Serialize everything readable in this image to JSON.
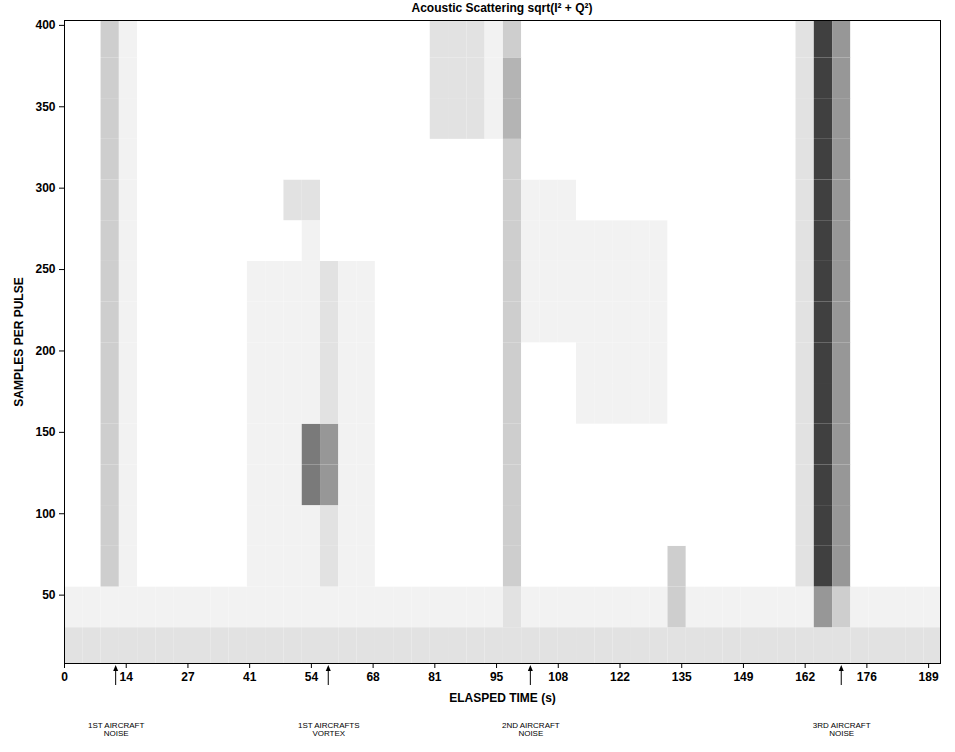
{
  "chart_data": {
    "type": "heatmap",
    "title": "Acoustic Scattering sqrt(I² + Q²)",
    "x_label": "ELASPED TIME (s)",
    "y_label": "SAMPLES PER PULSE",
    "xlim": [
      0,
      191.6
    ],
    "ylim": [
      8,
      403
    ],
    "xticks": [
      0,
      {
        "value": 13.5,
        "label": "14"
      },
      27,
      {
        "value": 40.5,
        "label": "41"
      },
      54,
      {
        "value": 67.5,
        "label": "68"
      },
      81,
      {
        "value": 94.5,
        "label": "95"
      },
      108,
      {
        "value": 121.5,
        "label": "122"
      },
      135,
      {
        "value": 148.5,
        "label": "149"
      },
      162,
      {
        "value": 175.5,
        "label": "176"
      },
      189
    ],
    "yticks": [
      50,
      100,
      150,
      200,
      250,
      300,
      350,
      400
    ],
    "color": "greys",
    "clim": [
      0,
      10
    ],
    "x_edges": [
      0,
      4,
      8,
      12,
      16,
      20,
      24,
      28,
      32,
      36,
      40,
      44,
      48,
      52,
      56,
      60,
      64,
      68,
      72,
      76,
      80,
      84,
      88,
      92,
      96,
      100,
      104,
      108,
      112,
      116,
      120,
      124,
      128,
      132,
      136,
      140,
      144,
      148,
      152,
      156,
      160,
      164,
      168,
      172,
      176,
      180,
      184,
      188,
      192
    ],
    "y_edges": [
      5,
      30,
      55,
      80,
      105,
      130,
      155,
      180,
      205,
      230,
      255,
      280,
      305,
      330,
      355,
      380,
      405
    ],
    "cells": [
      [
        2,
        2,
        2,
        2,
        2,
        2,
        2,
        2,
        2,
        2,
        2,
        2,
        2,
        2,
        2,
        2,
        2,
        2,
        2,
        2,
        2,
        2,
        2,
        2,
        2,
        2,
        2,
        2,
        2,
        2,
        2,
        2,
        2,
        2,
        2,
        2,
        2,
        2,
        2,
        2,
        2,
        2,
        2,
        2,
        2,
        2,
        2,
        2
      ],
      [
        1,
        1,
        1,
        1,
        1,
        1,
        1,
        1,
        1,
        1,
        1,
        1,
        1,
        1,
        1,
        1,
        1,
        1,
        1,
        1,
        1,
        1,
        1,
        1,
        2,
        1,
        1,
        1,
        1,
        1,
        1,
        1,
        1,
        3,
        1,
        1,
        1,
        1,
        1,
        1,
        1,
        5,
        3,
        1,
        1,
        1,
        1,
        1
      ],
      [
        0,
        0,
        3,
        1,
        0,
        0,
        0,
        0,
        0,
        0,
        1,
        1,
        1,
        1,
        2,
        1,
        1,
        0,
        0,
        0,
        0,
        0,
        0,
        0,
        3,
        0,
        0,
        0,
        0,
        0,
        0,
        0,
        0,
        3,
        0,
        0,
        0,
        0,
        0,
        0,
        2,
        8,
        5,
        0,
        0,
        0,
        0,
        0
      ],
      [
        0,
        0,
        3,
        1,
        0,
        0,
        0,
        0,
        0,
        0,
        1,
        1,
        1,
        1,
        2,
        1,
        1,
        0,
        0,
        0,
        0,
        0,
        0,
        0,
        3,
        0,
        0,
        0,
        0,
        0,
        0,
        0,
        0,
        0,
        0,
        0,
        0,
        0,
        0,
        0,
        2,
        8,
        5,
        0,
        0,
        0,
        0,
        0
      ],
      [
        0,
        0,
        3,
        1,
        0,
        0,
        0,
        0,
        0,
        0,
        1,
        1,
        1,
        6,
        5,
        1,
        1,
        0,
        0,
        0,
        0,
        0,
        0,
        0,
        3,
        0,
        0,
        0,
        0,
        0,
        0,
        0,
        0,
        0,
        0,
        0,
        0,
        0,
        0,
        0,
        2,
        8,
        5,
        0,
        0,
        0,
        0,
        0
      ],
      [
        0,
        0,
        3,
        1,
        0,
        0,
        0,
        0,
        0,
        0,
        1,
        1,
        1,
        6,
        5,
        1,
        1,
        0,
        0,
        0,
        0,
        0,
        0,
        0,
        3,
        0,
        0,
        0,
        0,
        0,
        0,
        0,
        0,
        0,
        0,
        0,
        0,
        0,
        0,
        0,
        2,
        8,
        5,
        0,
        0,
        0,
        0,
        0
      ],
      [
        0,
        0,
        3,
        1,
        0,
        0,
        0,
        0,
        0,
        0,
        1,
        1,
        1,
        1,
        2,
        1,
        1,
        0,
        0,
        0,
        0,
        0,
        0,
        0,
        3,
        0,
        0,
        0,
        1,
        1,
        1,
        1,
        1,
        0,
        0,
        0,
        0,
        0,
        0,
        0,
        2,
        8,
        5,
        0,
        0,
        0,
        0,
        0
      ],
      [
        0,
        0,
        3,
        1,
        0,
        0,
        0,
        0,
        0,
        0,
        1,
        1,
        1,
        1,
        2,
        1,
        1,
        0,
        0,
        0,
        0,
        0,
        0,
        0,
        3,
        0,
        0,
        0,
        1,
        1,
        1,
        1,
        1,
        0,
        0,
        0,
        0,
        0,
        0,
        0,
        2,
        8,
        5,
        0,
        0,
        0,
        0,
        0
      ],
      [
        0,
        0,
        3,
        1,
        0,
        0,
        0,
        0,
        0,
        0,
        1,
        1,
        1,
        1,
        2,
        1,
        1,
        0,
        0,
        0,
        0,
        0,
        0,
        0,
        3,
        1,
        1,
        1,
        1,
        1,
        1,
        1,
        1,
        0,
        0,
        0,
        0,
        0,
        0,
        0,
        2,
        8,
        5,
        0,
        0,
        0,
        0,
        0
      ],
      [
        0,
        0,
        3,
        1,
        0,
        0,
        0,
        0,
        0,
        0,
        1,
        1,
        1,
        1,
        2,
        1,
        1,
        0,
        0,
        0,
        0,
        0,
        0,
        0,
        3,
        1,
        1,
        1,
        1,
        1,
        1,
        1,
        1,
        0,
        0,
        0,
        0,
        0,
        0,
        0,
        2,
        8,
        5,
        0,
        0,
        0,
        0,
        0
      ],
      [
        0,
        0,
        3,
        1,
        0,
        0,
        0,
        0,
        0,
        0,
        0,
        0,
        0,
        1,
        0,
        0,
        0,
        0,
        0,
        0,
        0,
        0,
        0,
        0,
        3,
        1,
        1,
        1,
        1,
        1,
        1,
        1,
        1,
        0,
        0,
        0,
        0,
        0,
        0,
        0,
        2,
        8,
        5,
        0,
        0,
        0,
        0,
        0
      ],
      [
        0,
        0,
        3,
        1,
        0,
        0,
        0,
        0,
        0,
        0,
        0,
        0,
        2,
        2,
        0,
        0,
        0,
        0,
        0,
        0,
        0,
        0,
        0,
        0,
        3,
        1,
        1,
        1,
        0,
        0,
        0,
        0,
        0,
        0,
        0,
        0,
        0,
        0,
        0,
        0,
        2,
        8,
        5,
        0,
        0,
        0,
        0,
        0
      ],
      [
        0,
        0,
        3,
        1,
        0,
        0,
        0,
        0,
        0,
        0,
        0,
        0,
        0,
        0,
        0,
        0,
        0,
        0,
        0,
        0,
        0,
        0,
        0,
        0,
        3,
        0,
        0,
        0,
        0,
        0,
        0,
        0,
        0,
        0,
        0,
        0,
        0,
        0,
        0,
        0,
        2,
        8,
        5,
        0,
        0,
        0,
        0,
        0
      ],
      [
        0,
        0,
        3,
        1,
        0,
        0,
        0,
        0,
        0,
        0,
        0,
        0,
        0,
        0,
        0,
        0,
        0,
        0,
        0,
        0,
        2,
        2,
        2,
        1,
        4,
        0,
        0,
        0,
        0,
        0,
        0,
        0,
        0,
        0,
        0,
        0,
        0,
        0,
        0,
        0,
        2,
        8,
        5,
        0,
        0,
        0,
        0,
        0
      ],
      [
        0,
        0,
        3,
        1,
        0,
        0,
        0,
        0,
        0,
        0,
        0,
        0,
        0,
        0,
        0,
        0,
        0,
        0,
        0,
        0,
        2,
        2,
        2,
        1,
        4,
        0,
        0,
        0,
        0,
        0,
        0,
        0,
        0,
        0,
        0,
        0,
        0,
        0,
        0,
        0,
        2,
        8,
        5,
        0,
        0,
        0,
        0,
        0
      ],
      [
        0,
        0,
        3,
        1,
        0,
        0,
        0,
        0,
        0,
        0,
        0,
        0,
        0,
        0,
        0,
        0,
        0,
        0,
        0,
        0,
        2,
        2,
        2,
        1,
        3,
        0,
        0,
        0,
        0,
        0,
        0,
        0,
        0,
        0,
        0,
        0,
        0,
        0,
        0,
        0,
        2,
        8,
        5,
        0,
        0,
        0,
        0,
        0
      ]
    ],
    "annotations": [
      {
        "x": 11.3,
        "text": "1ST AIRCRAFT\nNOISE"
      },
      {
        "x": 57.8,
        "text": "1ST AIRCRAFTS\nVORTEX"
      },
      {
        "x": 102,
        "text": "2ND AIRCRAFT\nNOISE"
      },
      {
        "x": 170,
        "text": "3RD AIRCRAFT\nNOISE"
      }
    ]
  }
}
